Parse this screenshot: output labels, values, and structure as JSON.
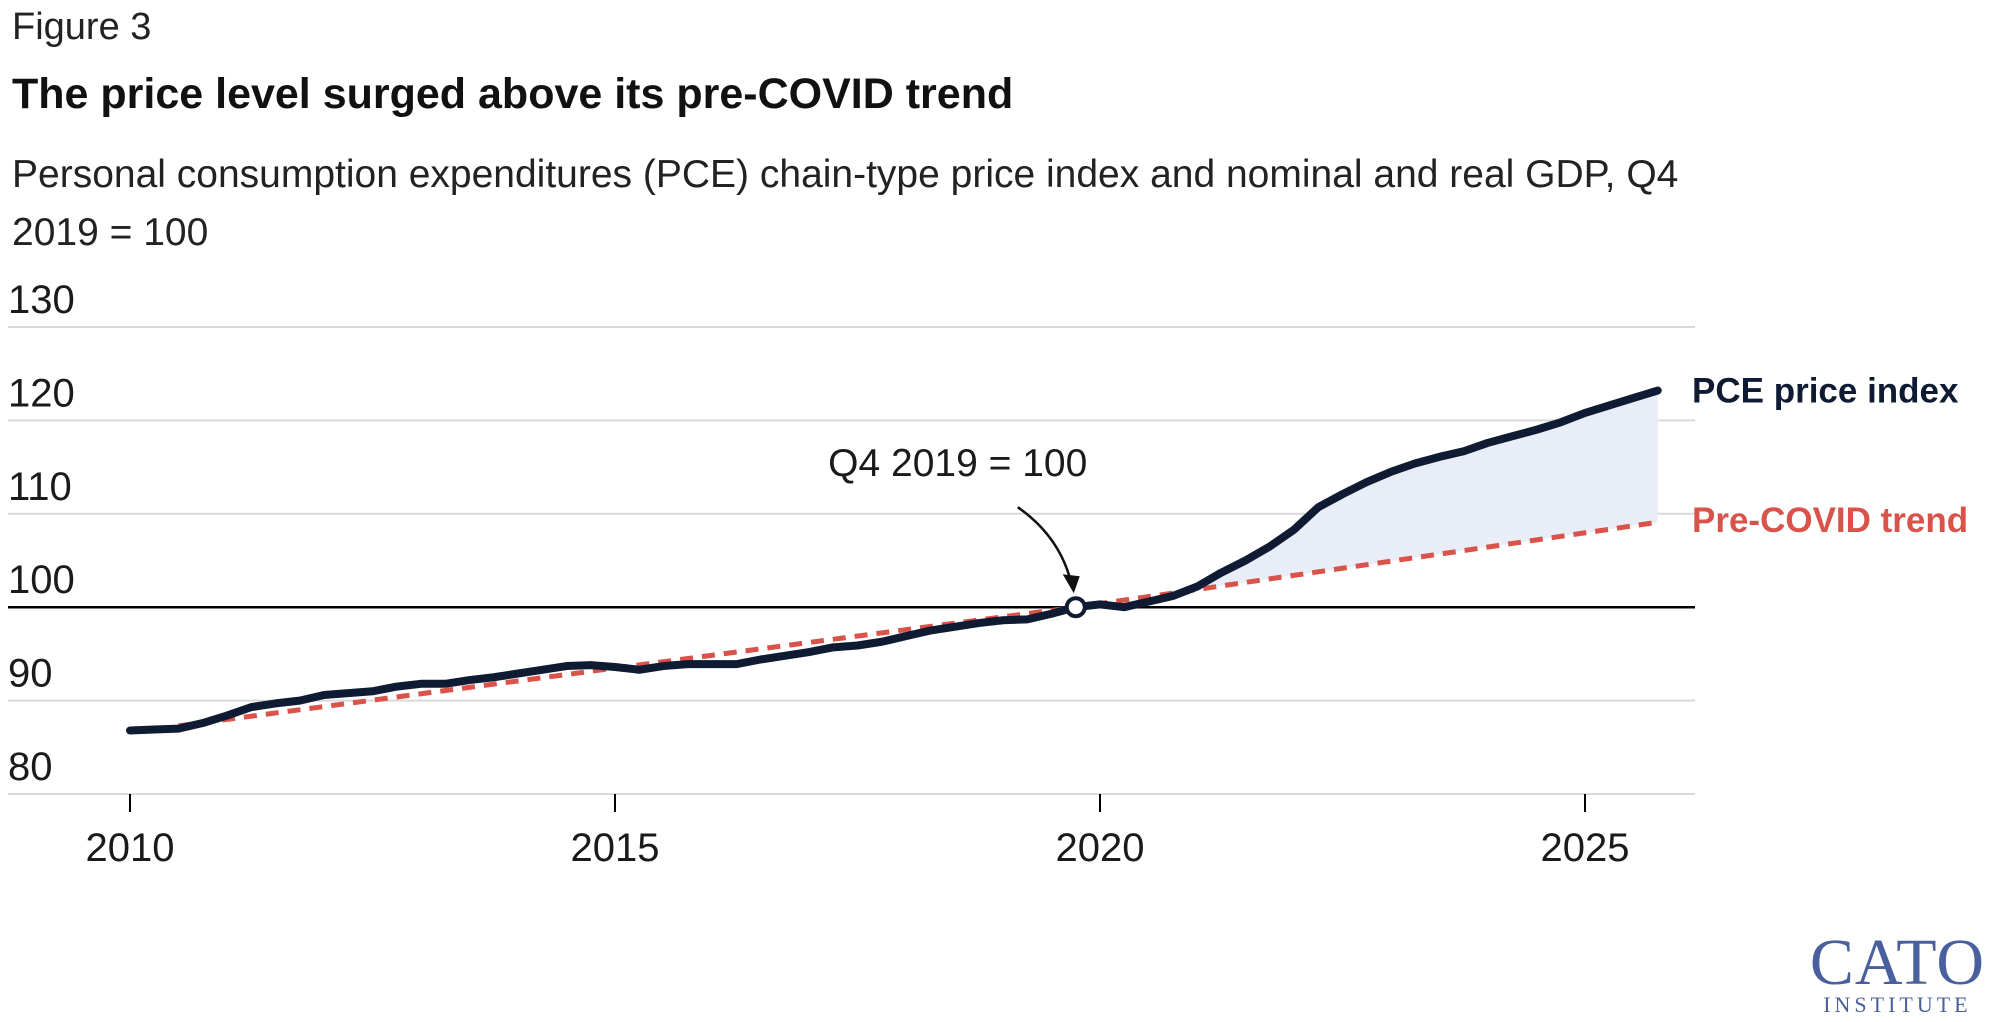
{
  "figure_label": "Figure 3",
  "logo": {
    "big": "CATO",
    "small": "INSTITUTE"
  },
  "colors": {
    "pce": "#0f1b33",
    "trend": "#d9534a",
    "fill": "#e8edf7",
    "grid": "#d9d9d9",
    "baseline": "#000000"
  },
  "chart_data": {
    "type": "line",
    "title": "The price level surged above its pre-COVID trend",
    "subtitle": "Personal consumption expenditures (PCE) chain-type price index and nominal and real GDP, Q4 2019 = 100",
    "xlabel": "",
    "ylabel": "",
    "xlim": [
      2009.5,
      2026.1
    ],
    "ylim": [
      77,
      134
    ],
    "yticks": [
      80,
      90,
      100,
      110,
      120,
      130
    ],
    "xticks": [
      2010,
      2015,
      2020,
      2025
    ],
    "baseline": 100,
    "grid": true,
    "annotation": {
      "text": "Q4 2019 = 100",
      "x": 2019.75,
      "y": 100
    },
    "series": [
      {
        "name": "PCE price index",
        "style": "solid",
        "x": [
          2010.0,
          2010.25,
          2010.5,
          2010.75,
          2011.0,
          2011.25,
          2011.5,
          2011.75,
          2012.0,
          2012.25,
          2012.5,
          2012.75,
          2013.0,
          2013.25,
          2013.5,
          2013.75,
          2014.0,
          2014.25,
          2014.5,
          2014.75,
          2015.0,
          2015.25,
          2015.5,
          2015.75,
          2016.0,
          2016.25,
          2016.5,
          2016.75,
          2017.0,
          2017.25,
          2017.5,
          2017.75,
          2018.0,
          2018.25,
          2018.5,
          2018.75,
          2019.0,
          2019.25,
          2019.5,
          2019.75,
          2020.0,
          2020.25,
          2020.5,
          2020.75,
          2021.0,
          2021.25,
          2021.5,
          2021.75,
          2022.0,
          2022.25,
          2022.5,
          2022.75,
          2023.0,
          2023.25,
          2023.5,
          2023.75,
          2024.0,
          2024.25,
          2024.5,
          2024.75,
          2025.0,
          2025.25,
          2025.5,
          2025.75
        ],
        "values": [
          86.8,
          86.9,
          87.0,
          87.6,
          88.4,
          89.3,
          89.7,
          90.0,
          90.6,
          90.8,
          91.0,
          91.5,
          91.8,
          91.8,
          92.2,
          92.5,
          92.9,
          93.3,
          93.7,
          93.8,
          93.6,
          93.3,
          93.7,
          93.9,
          93.9,
          93.9,
          94.4,
          94.8,
          95.2,
          95.7,
          95.9,
          96.3,
          96.9,
          97.5,
          97.9,
          98.3,
          98.6,
          98.7,
          99.3,
          100.0,
          100.3,
          100.0,
          100.6,
          101.2,
          102.2,
          103.7,
          105.0,
          106.5,
          108.3,
          110.7,
          112.1,
          113.4,
          114.5,
          115.4,
          116.1,
          116.7,
          117.6,
          118.3,
          119.0,
          119.8,
          120.8,
          121.6,
          122.4,
          123.2
        ]
      },
      {
        "name": "Pre-COVID trend",
        "style": "dashed",
        "x": [
          2010.5,
          2019.75,
          2025.75
        ],
        "values": [
          87.3,
          100.0,
          109.1
        ]
      }
    ],
    "shaded_area": {
      "between": [
        "PCE price index",
        "Pre-COVID trend"
      ],
      "from_x": 2021.0
    }
  }
}
